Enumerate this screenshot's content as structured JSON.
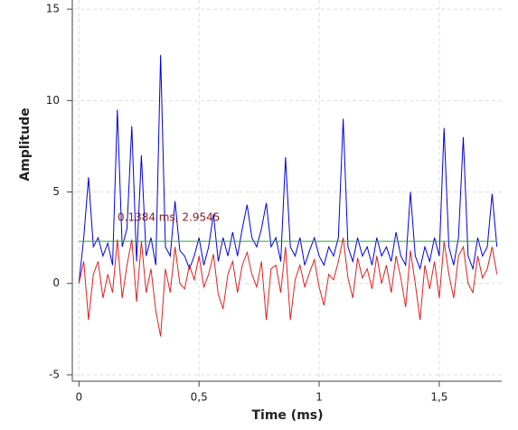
{
  "chart_data": {
    "type": "line",
    "xlabel": "Time (ms)",
    "ylabel": "Amplitude",
    "annotation": "0.1384 ms, 2.9545",
    "xlim": [
      -0.02,
      1.76
    ],
    "ylim": [
      -5.25,
      15.5
    ],
    "xticks": [
      0,
      {
        "value": 0.5,
        "label": "0,5"
      },
      1,
      {
        "value": 1.5,
        "label": "1,5"
      }
    ],
    "yticks": [
      15,
      10,
      5,
      0,
      -5
    ],
    "grid": true,
    "x": [
      0,
      0.02,
      0.04,
      0.06,
      0.08,
      0.1,
      0.12,
      0.14,
      0.16,
      0.18,
      0.2,
      0.22,
      0.24,
      0.26,
      0.28,
      0.3,
      0.32,
      0.34,
      0.36,
      0.38,
      0.4,
      0.42,
      0.44,
      0.46,
      0.48,
      0.5,
      0.52,
      0.54,
      0.56,
      0.58,
      0.6,
      0.62,
      0.64,
      0.66,
      0.68,
      0.7,
      0.72,
      0.74,
      0.76,
      0.78,
      0.8,
      0.82,
      0.84,
      0.86,
      0.88,
      0.9,
      0.92,
      0.94,
      0.96,
      0.98,
      1,
      1.02,
      1.04,
      1.06,
      1.08,
      1.1,
      1.12,
      1.14,
      1.16,
      1.18,
      1.2,
      1.22,
      1.24,
      1.26,
      1.28,
      1.3,
      1.32,
      1.34,
      1.36,
      1.38,
      1.4,
      1.42,
      1.44,
      1.46,
      1.48,
      1.5,
      1.52,
      1.54,
      1.56,
      1.58,
      1.6,
      1.62,
      1.64,
      1.66,
      1.68,
      1.7,
      1.72,
      1.74
    ],
    "series": [
      {
        "color": "#0000e0",
        "values": [
          0,
          2.5,
          5.8,
          2,
          2.5,
          1.5,
          2.2,
          1,
          9.5,
          2,
          3,
          8.6,
          1.2,
          7,
          1.5,
          2.5,
          1,
          12.5,
          2,
          1.5,
          4.5,
          1.8,
          1.5,
          0.8,
          1.5,
          2.5,
          1,
          2,
          3.8,
          1.2,
          2.5,
          1.5,
          2.8,
          1.5,
          3,
          4.3,
          2.5,
          2,
          3,
          4.4,
          2,
          2.5,
          1.2,
          6.9,
          2,
          1.5,
          2.5,
          1,
          1.8,
          2.5,
          1.5,
          1,
          2,
          1.5,
          2.5,
          9,
          2,
          1.2,
          2.5,
          1.5,
          2,
          1,
          2.5,
          1.5,
          2,
          1.2,
          2.8,
          1.5,
          1,
          5,
          1.5,
          0.8,
          2,
          1.2,
          2.5,
          1.5,
          8.5,
          2,
          1,
          2.5,
          8,
          1.5,
          0.8,
          2.5,
          1.5,
          2,
          4.9,
          2
        ]
      },
      {
        "color": "#e02020",
        "values": [
          0,
          1.2,
          -2,
          0.5,
          1.2,
          -0.8,
          0.5,
          -0.5,
          2.4,
          -0.8,
          1,
          2.4,
          -1,
          2.3,
          -0.5,
          0.8,
          -1.5,
          -2.9,
          0.8,
          -0.5,
          2,
          0,
          -0.3,
          1,
          0.2,
          1.5,
          -0.2,
          0.5,
          1.6,
          -0.6,
          -1.4,
          0.5,
          1.2,
          -0.5,
          1,
          1.7,
          0.5,
          -0.2,
          1.2,
          -2,
          0.8,
          1,
          -0.5,
          2,
          -2,
          0.2,
          1,
          -0.2,
          0.6,
          1.3,
          -0.2,
          -1.2,
          0.5,
          0.2,
          1.2,
          2.5,
          0.3,
          -0.8,
          1.4,
          0.3,
          0.8,
          -0.3,
          1.5,
          0,
          1,
          -0.5,
          1.5,
          0.3,
          -1.3,
          1.8,
          0,
          -2,
          1,
          -0.3,
          1.2,
          -0.8,
          2.3,
          0.5,
          -0.8,
          1.5,
          2,
          0,
          -0.5,
          1.5,
          0.3,
          0.8,
          2,
          0.5
        ]
      },
      {
        "color": "#30a030",
        "values": [
          2.3,
          2.3,
          2.3,
          2.3,
          2.3,
          2.3,
          2.3,
          2.3,
          2.3,
          2.3,
          2.3,
          2.3,
          2.3,
          2.3,
          2.3,
          2.3,
          2.3,
          2.3,
          2.3,
          2.3,
          2.3,
          2.3,
          2.3,
          2.3,
          2.3,
          2.3,
          2.3,
          2.3,
          2.3,
          2.3,
          2.3,
          2.3,
          2.3,
          2.3,
          2.3,
          2.3,
          2.3,
          2.3,
          2.3,
          2.3,
          2.3,
          2.3,
          2.3,
          2.3,
          2.3,
          2.3,
          2.3,
          2.3,
          2.3,
          2.3,
          2.3,
          2.3,
          2.3,
          2.3,
          2.3,
          2.3,
          2.3,
          2.3,
          2.3,
          2.3,
          2.3,
          2.3,
          2.3,
          2.3,
          2.3,
          2.3,
          2.3,
          2.3,
          2.3,
          2.3,
          2.3,
          2.3,
          2.3,
          2.3,
          2.3,
          2.3,
          2.3,
          2.3,
          2.3,
          2.3,
          2.3,
          2.3,
          2.3,
          2.3,
          2.3,
          2.3,
          2.3,
          2.3
        ]
      }
    ]
  }
}
